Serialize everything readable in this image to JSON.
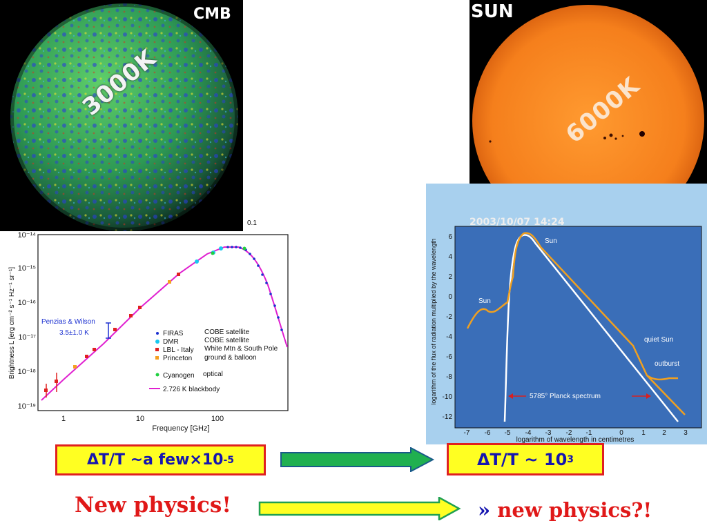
{
  "cmb": {
    "title": "CMB",
    "temperature": "3000K"
  },
  "sun": {
    "title": "SUN",
    "temperature": "6000K",
    "date": "2003/10/07 14:24"
  },
  "cmb_plot": {
    "partial_top_label": "0.1",
    "ylabel": "Brightness L [erg cm⁻² s⁻¹ Hz⁻¹ sr⁻¹]",
    "xlabel": "Frequency [GHz]",
    "y_ticks": [
      "10⁻¹⁴",
      "10⁻¹⁵",
      "10⁻¹⁶",
      "10⁻¹⁷",
      "10⁻¹⁸",
      "10⁻¹⁹"
    ],
    "x_ticks": [
      "1",
      "10",
      "100"
    ],
    "penzias_label": "Penzias & Wilson",
    "penzias_value": "3.5±1.0 K",
    "legend": [
      {
        "name": "FIRAS",
        "source": "COBE satellite",
        "color": "#1a2fd0"
      },
      {
        "name": "DMR",
        "source": "COBE satellite",
        "color": "#18c8f0"
      },
      {
        "name": "LBL - Italy",
        "source": "White Mtn & South Pole",
        "color": "#e02020"
      },
      {
        "name": "Princeton",
        "source": "ground & balloon",
        "color": "#f5a020"
      },
      {
        "name": "Cyanogen",
        "source": "optical",
        "color": "#20d040"
      },
      {
        "name": "2.726 K blackbody",
        "source": "",
        "color": "#e020d0"
      }
    ]
  },
  "sun_plot": {
    "ylabel": "logarithm of the flux of radiation multiplied by the wavelength",
    "xlabel": "logarithm of wavelength in centimetres",
    "x_ticks": [
      "-7",
      "-6",
      "-5",
      "-4",
      "-3",
      "-2",
      "-1",
      "0",
      "1",
      "2",
      "3"
    ],
    "y_ticks": [
      "6",
      "4",
      "2",
      "0",
      "-2",
      "-4",
      "-6",
      "-8",
      "-10",
      "-12"
    ],
    "labels": {
      "sun_top": "Sun",
      "sun_left": "Sun",
      "quiet": "quiet Sun",
      "outburst": "outburst",
      "planck": "5785° Planck spectrum"
    }
  },
  "formulas": {
    "cmb_base": "ΔT/T ~a few×10",
    "cmb_exp": "-5",
    "sun_base": "ΔT/T ~ 10",
    "sun_exp": "3"
  },
  "texts": {
    "new_physics": "New physics!",
    "new_physics_q_mark": "»",
    "new_physics_q": "new physics?!"
  },
  "colors": {
    "formula_fill": "#ffff22",
    "formula_border": "#e02020",
    "formula_text": "#1515b0",
    "arrow_green": "#20b050",
    "arrow_yellow": "#ffff22",
    "accent_red": "#e01818"
  }
}
